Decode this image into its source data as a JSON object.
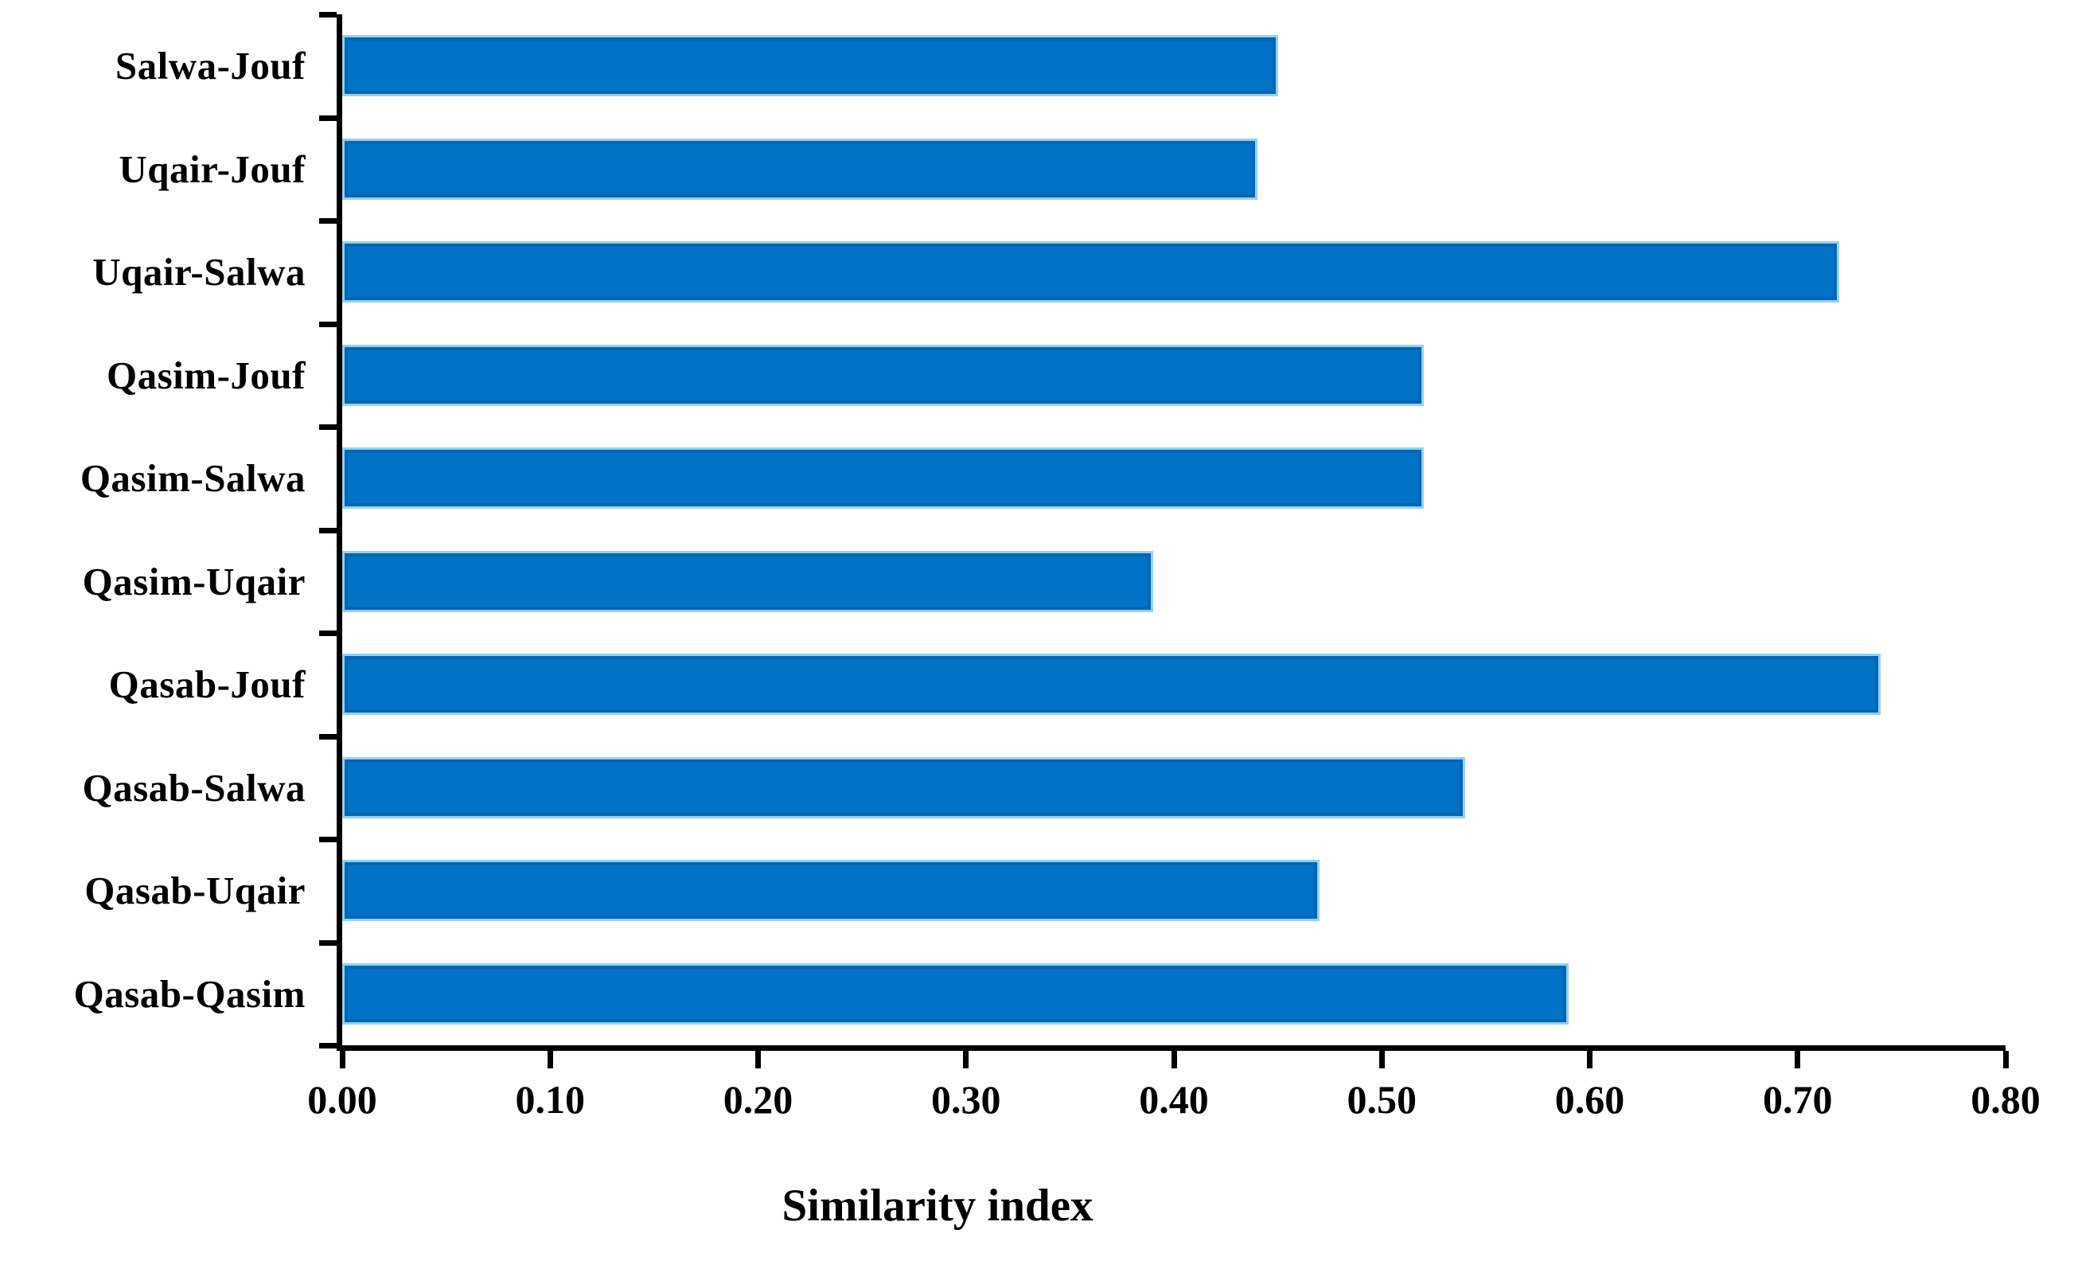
{
  "chart_data": {
    "type": "bar",
    "orientation": "horizontal",
    "title": "",
    "xlabel": "Similarity index",
    "ylabel": "",
    "categories": [
      "Salwa-Jouf",
      "Uqair-Jouf",
      "Uqair-Salwa",
      "Qasim-Jouf",
      "Qasim-Salwa",
      "Qasim-Uqair",
      "Qasab-Jouf",
      "Qasab-Salwa",
      "Qasab-Uqair",
      "Qasab-Qasim"
    ],
    "values": [
      0.45,
      0.44,
      0.72,
      0.52,
      0.52,
      0.39,
      0.74,
      0.54,
      0.47,
      0.59
    ],
    "xlim": [
      0,
      0.8
    ],
    "x_tick_labels": [
      "0.00",
      "0.10",
      "0.20",
      "0.30",
      "0.40",
      "0.50",
      "0.60",
      "0.70",
      "0.80"
    ],
    "grid": false,
    "legend": false,
    "colors": {
      "bar_fill": "#0272C6",
      "bar_inner_rim": "#0A64B0",
      "bar_outer_halo": "#8FD4F0",
      "axis": "#000000",
      "text": "#000000",
      "background": "#FFFFFF"
    }
  }
}
